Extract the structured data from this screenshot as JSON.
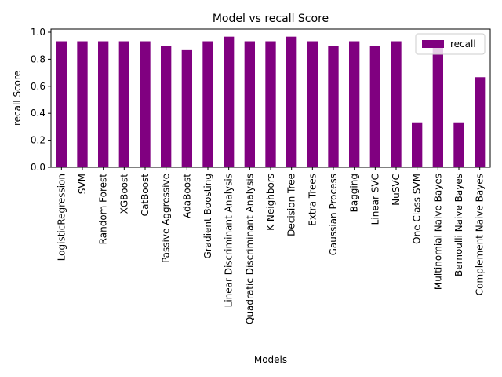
{
  "chart_data": {
    "type": "bar",
    "title": "Model vs recall Score",
    "xlabel": "Models",
    "ylabel": "recall Score",
    "ylim": [
      0,
      1.0
    ],
    "yticks": [
      0.0,
      0.2,
      0.4,
      0.6,
      0.8,
      1.0
    ],
    "legend_position": "top-right",
    "grid": false,
    "categories": [
      "LogisticRegression",
      "SVM",
      "Random Forest",
      "XGBoost",
      "CatBoost",
      "Passive Aggressive",
      "AdaBoost",
      "Gradient Boosting",
      "Linear Discriminant Analysis",
      "Quadratic Discriminant Analysis",
      "K Neighbors",
      "Decision Tree",
      "Extra Trees",
      "Gaussian Process",
      "Bagging",
      "Linear SVC",
      "NuSVC",
      "One Class SVM",
      "Multinomial Naive Bayes",
      "Bernoulli Naive Bayes",
      "Complement Naive Bayes"
    ],
    "series": [
      {
        "name": "recall",
        "color": "#800080",
        "values": [
          0.933,
          0.933,
          0.933,
          0.933,
          0.933,
          0.9,
          0.867,
          0.933,
          0.967,
          0.933,
          0.933,
          0.967,
          0.933,
          0.9,
          0.933,
          0.9,
          0.933,
          0.333,
          0.933,
          0.333,
          0.667
        ]
      }
    ]
  }
}
